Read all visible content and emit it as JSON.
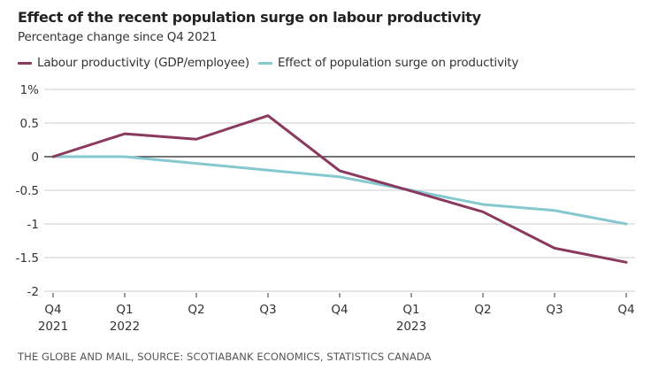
{
  "chart_data": {
    "type": "line",
    "title": "Effect of the recent population surge on labour productivity",
    "subtitle": "Percentage change since Q4 2021",
    "xlabel": "",
    "ylabel": "",
    "categories": [
      "Q4 2021",
      "Q1 2022",
      "Q2 2022",
      "Q3 2022",
      "Q4 2022",
      "Q1 2023",
      "Q2 2023",
      "Q3 2023",
      "Q4 2023"
    ],
    "x_tick_labels": [
      {
        "line1": "Q4",
        "line2": "2021"
      },
      {
        "line1": "Q1",
        "line2": "2022"
      },
      {
        "line1": "Q2",
        "line2": ""
      },
      {
        "line1": "Q3",
        "line2": ""
      },
      {
        "line1": "Q4",
        "line2": ""
      },
      {
        "line1": "Q1",
        "line2": "2023"
      },
      {
        "line1": "Q2",
        "line2": ""
      },
      {
        "line1": "Q3",
        "line2": ""
      },
      {
        "line1": "Q4",
        "line2": ""
      }
    ],
    "y_ticks": [
      1,
      0.5,
      0,
      -0.5,
      -1,
      -1.5,
      -2
    ],
    "y_tick_labels": [
      "1%",
      "0.5",
      "0",
      "-0.5",
      "-1",
      "-1.5",
      "-2"
    ],
    "ylim": [
      -2,
      1
    ],
    "grid": true,
    "legend_position": "top-left",
    "series": [
      {
        "name": "Labour productivity (GDP/employee)",
        "color": "#8a3a5e",
        "values": [
          0,
          0.34,
          0.26,
          0.61,
          -0.21,
          -0.51,
          -0.82,
          -1.36,
          -1.57
        ]
      },
      {
        "name": "Effect of population surge on productivity",
        "color": "#86c8d0",
        "values": [
          0,
          0,
          -0.1,
          -0.2,
          -0.3,
          -0.5,
          -0.71,
          -0.8,
          -1.0
        ]
      }
    ]
  },
  "source": "THE GLOBE AND MAIL, SOURCE: SCOTIABANK ECONOMICS, STATISTICS CANADA"
}
